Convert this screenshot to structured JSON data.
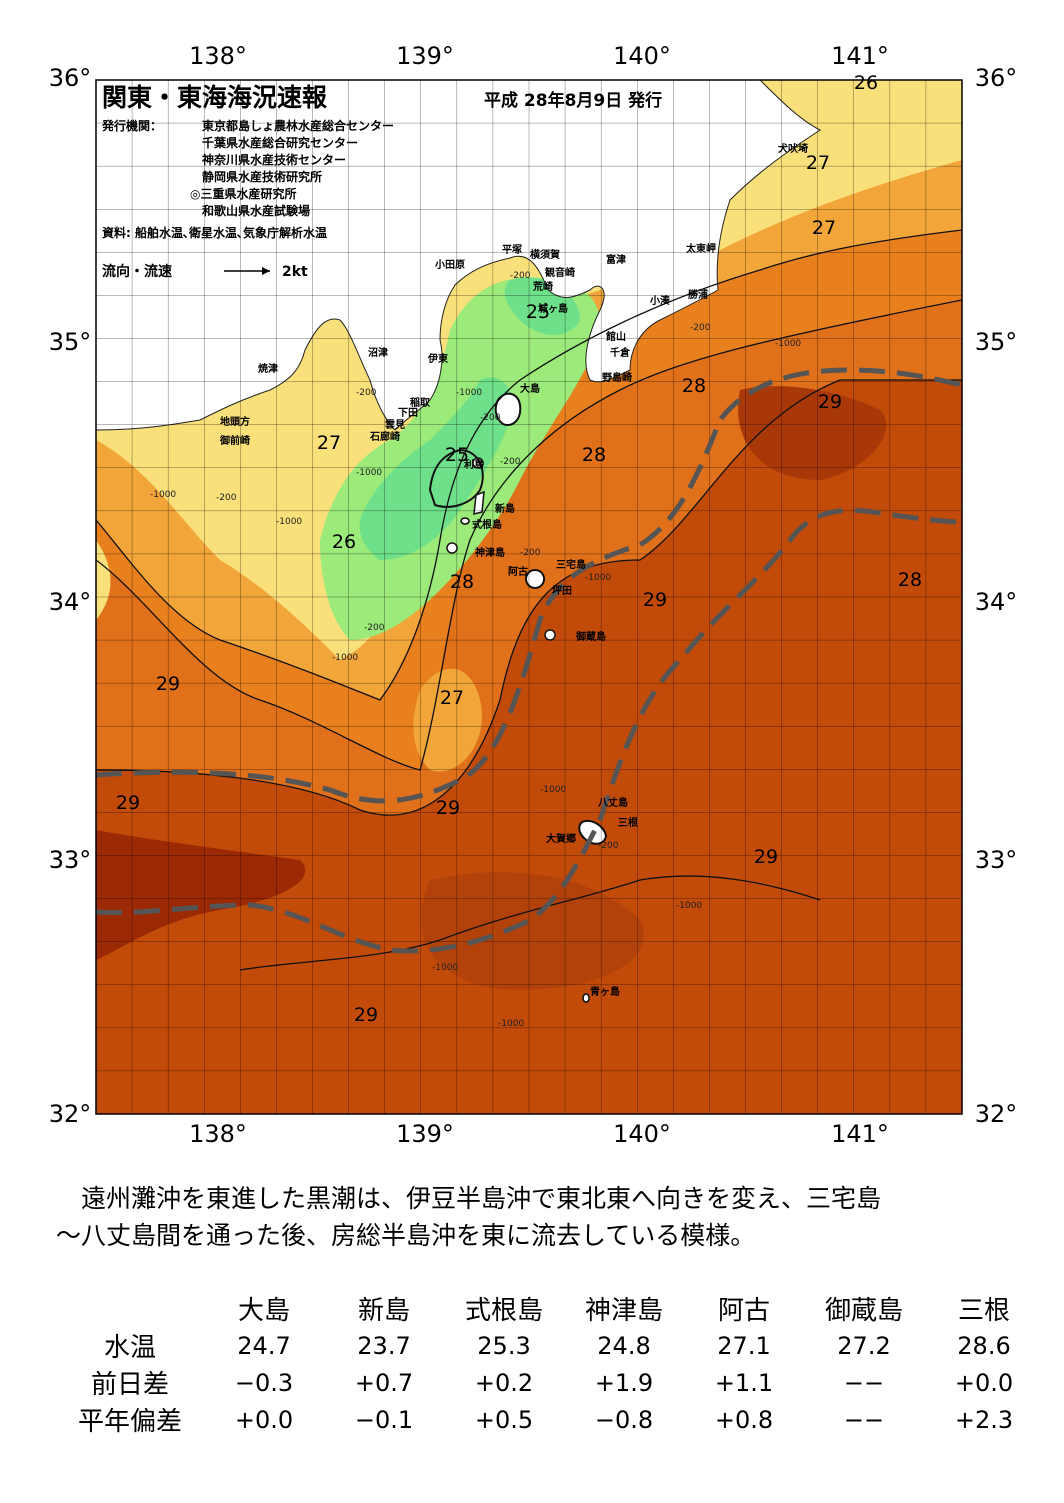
{
  "map": {
    "title": "関東・東海海況速報",
    "date": "平成 28年8月9日 発行",
    "publisher_label": "発行機関：",
    "publishers": [
      "東京都島しょ農林水産総合センター",
      "千葉県水産総合研究センター",
      "神奈川県水産技術センター",
      "静岡県水産技術研究所",
      "◎三重県水産研究所",
      "和歌山県水産試験場"
    ],
    "source": "資料: 船舶水温､衛星水温､気象庁解析水温",
    "flow_legend": "流向・流速",
    "flow_speed": "2kt",
    "lon_labels": [
      "138°",
      "139°",
      "140°",
      "141°"
    ],
    "lat_labels": [
      "36°",
      "35°",
      "34°",
      "33°",
      "32°"
    ],
    "lon_range": [
      137.5,
      141.5
    ],
    "lat_range": [
      32,
      36
    ],
    "place_names": [
      "小田原",
      "平塚",
      "横須賀",
      "観音崎",
      "荒崎",
      "富津",
      "城ヶ島",
      "館山",
      "千倉",
      "野島崎",
      "大島",
      "伊東",
      "沼津",
      "焼津",
      "稲取",
      "下田",
      "雲見",
      "石廊崎",
      "地頭方",
      "御前崎",
      "利島",
      "新島",
      "式根島",
      "神津島",
      "三宅島",
      "阿古",
      "坪田",
      "御蔵島",
      "八丈島",
      "三根",
      "大賀郷",
      "青ヶ島",
      "太東岬",
      "勝浦",
      "小湊",
      "犬吠埼"
    ],
    "isotherm_labels": [
      "25",
      "25",
      "26",
      "26",
      "27",
      "27",
      "27",
      "27",
      "28",
      "28",
      "28",
      "28",
      "29",
      "29",
      "29",
      "29",
      "29",
      "29",
      "29"
    ],
    "depth_labels": [
      "-200",
      "-1000"
    ],
    "colors": {
      "t29plus": "#9b2a04",
      "t29": "#c24b0a",
      "t28": "#e8801e",
      "t27": "#f2a63a",
      "t26": "#fae07a",
      "t25": "#9bea7a",
      "t24": "#6fe08a",
      "land": "#ffffff",
      "kuroshio": "#555555"
    }
  },
  "description": [
    "　遠州灘沖を東進した黒潮は、伊豆半島沖で東北東へ向きを変え、三宅島",
    "～八丈島間を通った後、房総半島沖を東に流去している模様。"
  ],
  "table": {
    "columns": [
      "大島",
      "新島",
      "式根島",
      "神津島",
      "阿古",
      "御蔵島",
      "三根"
    ],
    "rows": [
      {
        "label": "水温",
        "values": [
          "24.7",
          "23.7",
          "25.3",
          "24.8",
          "27.1",
          "27.2",
          "28.6"
        ]
      },
      {
        "label": "前日差",
        "values": [
          "−0.3",
          "+0.7",
          "+0.2",
          "+1.9",
          "+1.1",
          "−−",
          "+0.0"
        ]
      },
      {
        "label": "平年偏差",
        "values": [
          "+0.0",
          "−0.1",
          "+0.5",
          "−0.8",
          "+0.8",
          "−−",
          "+2.3"
        ]
      }
    ]
  }
}
